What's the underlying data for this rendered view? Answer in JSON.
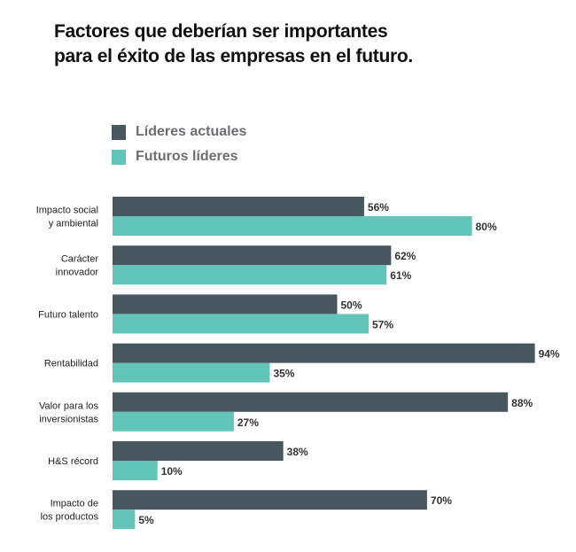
{
  "chart_data": {
    "type": "bar",
    "orientation": "horizontal",
    "title": "Factores que deberían ser importantes\npara el éxito de las empresas en el futuro.",
    "title_lines": [
      "Factores que deberían ser importantes",
      "para el éxito de las empresas en el futuro."
    ],
    "categories": [
      [
        "Impacto social",
        "y ambiental"
      ],
      [
        "Carácter",
        "innovador"
      ],
      [
        "Futuro talento"
      ],
      [
        "Rentabilidad"
      ],
      [
        "Valor para los",
        "inversionistas"
      ],
      [
        "H&S récord"
      ],
      [
        "Impacto de",
        "los productos"
      ]
    ],
    "series": [
      {
        "name": "Líderes actuales",
        "color": "#48565f",
        "values": [
          56,
          62,
          50,
          94,
          88,
          38,
          70
        ]
      },
      {
        "name": "Futuros líderes",
        "color": "#63c4b9",
        "values": [
          80,
          61,
          57,
          35,
          27,
          10,
          5
        ]
      }
    ],
    "value_suffix": "%",
    "xlim": [
      0,
      100
    ],
    "grid": false,
    "legend_position": "top-left",
    "xlabel": "",
    "ylabel": ""
  }
}
